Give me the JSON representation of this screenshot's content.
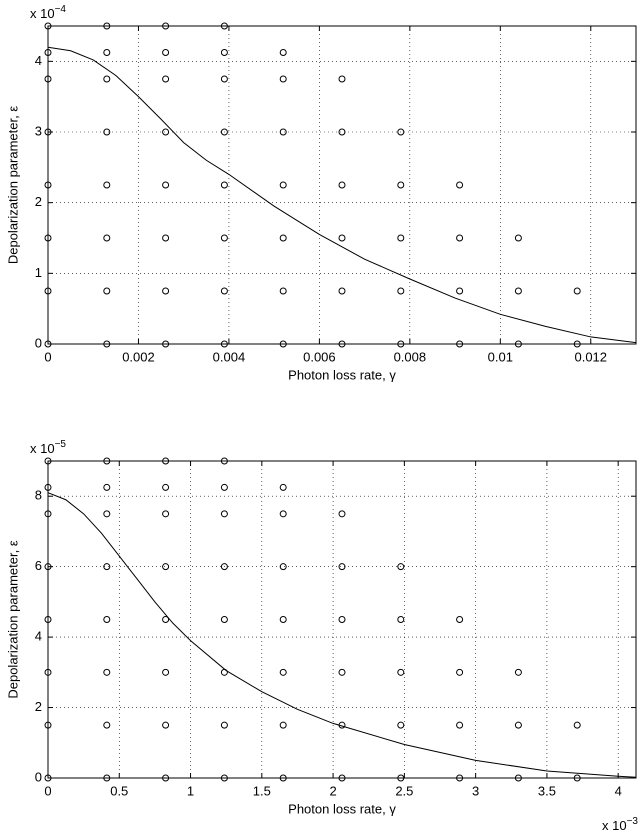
{
  "chart_data": [
    {
      "type": "scatter",
      "xlabel": "Photon loss rate, γ",
      "ylabel": "Depolarization parameter, ε",
      "y_multiplier": {
        "base": "x 10",
        "exponent": "−4"
      },
      "xlim": [
        0,
        0.013
      ],
      "ylim": [
        0,
        4.5
      ],
      "xticks": [
        0,
        0.002,
        0.004,
        0.006,
        0.008,
        0.01,
        0.012
      ],
      "yticks": [
        0,
        1,
        2,
        3,
        4
      ],
      "grid": true,
      "series": [
        {
          "type": "scatter",
          "color": "#000000",
          "x": [
            0,
            0.0013,
            0.0026,
            0.0039,
            0.0052,
            0.0065,
            0.0078,
            0.0091,
            0.0104,
            0.0117,
            0,
            0.0013,
            0.0026,
            0.0039,
            0.0052,
            0.0065,
            0.0078,
            0.0091,
            0.0104,
            0.0117,
            0,
            0.0013,
            0.0026,
            0.0039,
            0.0052,
            0.0065,
            0.0078,
            0.0091,
            0.0104,
            0,
            0.0013,
            0.0026,
            0.0039,
            0.0052,
            0.0065,
            0.0078,
            0.0091,
            0,
            0.0013,
            0.0026,
            0.0039,
            0.0052,
            0.0065,
            0.0078,
            0,
            0.0013,
            0.0026,
            0.0039,
            0.0052,
            0.0065,
            0,
            0.0013,
            0.0026,
            0.0039,
            0.0052,
            0,
            0.0013,
            0.0026,
            0.0039
          ],
          "values": [
            0,
            0,
            0,
            0,
            0,
            0,
            0,
            0,
            0,
            0,
            0.75,
            0.75,
            0.75,
            0.75,
            0.75,
            0.75,
            0.75,
            0.75,
            0.75,
            0.75,
            1.5,
            1.5,
            1.5,
            1.5,
            1.5,
            1.5,
            1.5,
            1.5,
            1.5,
            2.25,
            2.25,
            2.25,
            2.25,
            2.25,
            2.25,
            2.25,
            2.25,
            3,
            3,
            3,
            3,
            3,
            3,
            3,
            3.75,
            3.75,
            3.75,
            3.75,
            3.75,
            3.75,
            4.125,
            4.125,
            4.125,
            4.125,
            4.125,
            4.5,
            4.5,
            4.5,
            4.5
          ]
        },
        {
          "type": "line",
          "color": "#000000",
          "x": [
            0,
            0.0005,
            0.001,
            0.0015,
            0.002,
            0.0025,
            0.003,
            0.0035,
            0.004,
            0.005,
            0.006,
            0.007,
            0.008,
            0.009,
            0.01,
            0.011,
            0.012,
            0.013
          ],
          "values": [
            4.2,
            4.15,
            4.02,
            3.8,
            3.5,
            3.18,
            2.85,
            2.6,
            2.4,
            1.95,
            1.55,
            1.2,
            0.92,
            0.65,
            0.42,
            0.25,
            0.1,
            0.02
          ]
        }
      ]
    },
    {
      "type": "scatter",
      "xlabel": "Photon loss rate, γ",
      "ylabel": "Depolarization parameter, ε",
      "y_multiplier": {
        "base": "x 10",
        "exponent": "−5"
      },
      "x_multiplier": {
        "base": "x 10",
        "exponent": "−3"
      },
      "xlim": [
        0,
        4.125
      ],
      "ylim": [
        0,
        9
      ],
      "xticks": [
        0,
        0.5,
        1,
        1.5,
        2,
        2.5,
        3,
        3.5,
        4
      ],
      "yticks": [
        0,
        2,
        4,
        6,
        8
      ],
      "grid": true,
      "series": [
        {
          "type": "scatter",
          "color": "#000000",
          "x": [
            0,
            0.4125,
            0.825,
            1.2375,
            1.65,
            2.0625,
            2.475,
            2.8875,
            3.3,
            3.7125,
            0,
            0.4125,
            0.825,
            1.2375,
            1.65,
            2.0625,
            2.475,
            2.8875,
            3.3,
            3.7125,
            0,
            0.4125,
            0.825,
            1.2375,
            1.65,
            2.0625,
            2.475,
            2.8875,
            3.3,
            0,
            0.4125,
            0.825,
            1.2375,
            1.65,
            2.0625,
            2.475,
            2.8875,
            0,
            0.4125,
            0.825,
            1.2375,
            1.65,
            2.0625,
            2.475,
            0,
            0.4125,
            0.825,
            1.2375,
            1.65,
            2.0625,
            0,
            0.4125,
            0.825,
            1.2375,
            1.65,
            0,
            0.4125,
            0.825,
            1.2375
          ],
          "values": [
            0,
            0,
            0,
            0,
            0,
            0,
            0,
            0,
            0,
            0,
            1.5,
            1.5,
            1.5,
            1.5,
            1.5,
            1.5,
            1.5,
            1.5,
            1.5,
            1.5,
            3,
            3,
            3,
            3,
            3,
            3,
            3,
            3,
            3,
            4.5,
            4.5,
            4.5,
            4.5,
            4.5,
            4.5,
            4.5,
            4.5,
            6,
            6,
            6,
            6,
            6,
            6,
            6,
            7.5,
            7.5,
            7.5,
            7.5,
            7.5,
            7.5,
            8.25,
            8.25,
            8.25,
            8.25,
            8.25,
            9,
            9,
            9,
            9
          ]
        },
        {
          "type": "line",
          "color": "#000000",
          "x": [
            0,
            0.125,
            0.25,
            0.375,
            0.5,
            0.625,
            0.75,
            0.875,
            1,
            1.25,
            1.5,
            1.75,
            2,
            2.5,
            3,
            3.5,
            4,
            4.125
          ],
          "values": [
            8.1,
            7.9,
            7.5,
            6.95,
            6.3,
            5.65,
            5.0,
            4.4,
            3.9,
            3.05,
            2.45,
            1.95,
            1.55,
            0.95,
            0.5,
            0.2,
            0.05,
            0.02
          ]
        }
      ]
    }
  ]
}
